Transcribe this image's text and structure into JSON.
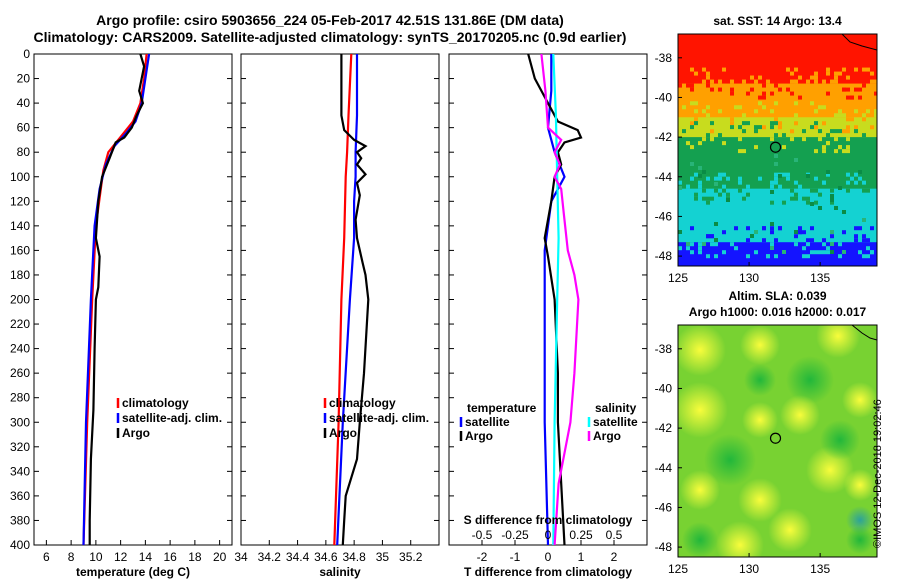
{
  "title": {
    "line1": "Argo profile: csiro 5903656_224 05-Feb-2017 42.51S 131.86E (DM data)",
    "line2": "Climatology: CARS2009. Satellite-adjusted climatology: synTS_20170205.nc (0.9d earlier)"
  },
  "stamp": "©IMOS 12-Dec-2018 19:02:46",
  "colors": {
    "clim": "#ff0000",
    "sat": "#0000ff",
    "argo": "#000000",
    "sdiff_argo": "#ff00ff",
    "sdiff_sat": "#00ffff"
  },
  "chart_data": [
    {
      "id": "temperature",
      "type": "line",
      "xlabel": "temperature (deg C)",
      "ylim": [
        400,
        0
      ],
      "xlim": [
        5,
        21
      ],
      "xticks": [
        6,
        8,
        10,
        12,
        14,
        16,
        18,
        20
      ],
      "yticks": [
        0,
        20,
        40,
        60,
        80,
        100,
        120,
        140,
        160,
        180,
        200,
        220,
        240,
        260,
        280,
        300,
        320,
        340,
        360,
        380,
        400
      ],
      "legend": [
        "climatology",
        "satellite-adj. clim.",
        "Argo"
      ],
      "series": [
        {
          "name": "climatology",
          "color": "#ff0000",
          "depth": [
            0,
            20,
            40,
            55,
            70,
            80,
            95,
            110,
            140,
            200,
            300,
            400
          ],
          "values": [
            14.1,
            13.9,
            13.6,
            13.0,
            11.8,
            11.0,
            10.6,
            10.4,
            10.0,
            9.7,
            9.3,
            9.0
          ]
        },
        {
          "name": "satellite-adj. clim.",
          "color": "#0000ff",
          "depth": [
            0,
            20,
            40,
            55,
            65,
            75,
            90,
            110,
            140,
            200,
            300,
            400
          ],
          "values": [
            14.3,
            14.0,
            13.7,
            13.2,
            12.4,
            11.5,
            10.8,
            10.3,
            9.9,
            9.6,
            9.2,
            9.0
          ]
        },
        {
          "name": "Argo",
          "color": "#000000",
          "depth": [
            0,
            10,
            30,
            40,
            50,
            60,
            68,
            72,
            85,
            100,
            120,
            150,
            165,
            190,
            200,
            240,
            290,
            330,
            380,
            400
          ],
          "values": [
            13.6,
            13.9,
            13.5,
            13.8,
            13.3,
            12.9,
            12.3,
            11.6,
            11.1,
            10.5,
            10.2,
            10.0,
            10.3,
            10.2,
            10.0,
            9.9,
            9.8,
            9.6,
            9.5,
            9.5
          ]
        }
      ]
    },
    {
      "id": "salinity",
      "type": "line",
      "xlabel": "salinity",
      "ylim": [
        400,
        0
      ],
      "xlim": [
        34.0,
        35.4
      ],
      "xticks": [
        34,
        34.2,
        34.4,
        34.6,
        34.8,
        35,
        35.2
      ],
      "legend": [
        "climatology",
        "satellite-adj. clim.",
        "Argo"
      ],
      "series": [
        {
          "name": "climatology",
          "color": "#ff0000",
          "depth": [
            0,
            50,
            80,
            100,
            150,
            200,
            300,
            400
          ],
          "values": [
            34.78,
            34.76,
            34.75,
            34.74,
            34.73,
            34.71,
            34.69,
            34.66
          ]
        },
        {
          "name": "satellite-adj. clim.",
          "color": "#0000ff",
          "depth": [
            0,
            50,
            80,
            100,
            120,
            150,
            200,
            300,
            400
          ],
          "values": [
            34.82,
            34.82,
            34.81,
            34.81,
            34.8,
            34.8,
            34.77,
            34.72,
            34.68
          ]
        },
        {
          "name": "Argo",
          "color": "#000000",
          "depth": [
            0,
            50,
            62,
            70,
            75,
            80,
            85,
            90,
            98,
            105,
            115,
            135,
            150,
            160,
            170,
            180,
            200,
            260,
            300,
            330,
            360,
            380,
            400
          ],
          "values": [
            34.71,
            34.71,
            34.73,
            34.8,
            34.88,
            34.82,
            34.85,
            34.82,
            34.88,
            34.82,
            34.84,
            34.81,
            34.82,
            34.84,
            34.86,
            34.88,
            34.9,
            34.87,
            34.84,
            34.82,
            34.74,
            34.73,
            34.72
          ]
        }
      ]
    },
    {
      "id": "differences",
      "type": "line",
      "xlabel": "T difference from climatology",
      "xlabel_top": "S difference from climatology",
      "ylim": [
        400,
        0
      ],
      "xlim": [
        -3,
        3
      ],
      "xticks": [
        -2,
        -1,
        0,
        1,
        2
      ],
      "sticks_labels": [
        "-0.5",
        "-0.25",
        "0",
        "0.25",
        "0.5"
      ],
      "sticks_T": [
        -2,
        -1,
        0,
        1,
        2
      ],
      "legend_left_title": "temperature",
      "legend_right_title": "salinity",
      "legend_left": [
        "satellite",
        "Argo"
      ],
      "legend_right": [
        "satellite",
        "Argo"
      ],
      "series": [
        {
          "name": "T satellite",
          "color": "#0000ff",
          "depth": [
            0,
            30,
            60,
            80,
            100,
            120,
            160,
            200,
            300,
            400
          ],
          "values": [
            0.1,
            0.1,
            0.0,
            0.2,
            0.5,
            0.1,
            -0.1,
            -0.1,
            -0.1,
            0.0
          ]
        },
        {
          "name": "T Argo",
          "color": "#000000",
          "depth": [
            0,
            20,
            40,
            55,
            62,
            68,
            72,
            80,
            90,
            100,
            120,
            150,
            165,
            200,
            260,
            300,
            350,
            400
          ],
          "values": [
            -0.6,
            -0.4,
            0.0,
            0.3,
            0.9,
            1.0,
            0.5,
            0.3,
            0.4,
            0.2,
            0.1,
            -0.1,
            0.0,
            0.2,
            0.3,
            0.3,
            0.4,
            0.5
          ]
        },
        {
          "name": "S satellite",
          "color": "#00ffff",
          "depth": [
            0,
            50,
            100,
            150,
            200,
            300,
            400
          ],
          "values": [
            0.04,
            0.06,
            0.07,
            0.08,
            0.07,
            0.05,
            0.04
          ]
        },
        {
          "name": "S Argo",
          "color": "#ff00ff",
          "depth": [
            0,
            30,
            60,
            70,
            80,
            90,
            100,
            110,
            130,
            160,
            180,
            200,
            260,
            300,
            350,
            400
          ],
          "values": [
            -0.05,
            -0.02,
            0.0,
            0.1,
            0.05,
            0.09,
            0.05,
            0.1,
            0.12,
            0.15,
            0.2,
            0.23,
            0.2,
            0.17,
            0.08,
            0.05
          ]
        }
      ]
    },
    {
      "id": "sst-map",
      "type": "heatmap",
      "title": "sat. SST: 14 Argo: 13.4",
      "xticks": [
        125,
        130,
        135
      ],
      "yticks": [
        -38,
        -40,
        -42,
        -44,
        -46,
        -48
      ],
      "xlim": [
        125,
        139
      ],
      "ylim": [
        -48.5,
        -36.8
      ],
      "marker": {
        "lon": 131.86,
        "lat": -42.51
      }
    },
    {
      "id": "sla-map",
      "type": "heatmap",
      "title": "Altim. SLA: 0.039",
      "subtitle": "Argo h1000: 0.016 h2000: 0.017",
      "xticks": [
        125,
        130,
        135
      ],
      "yticks": [
        -38,
        -40,
        -42,
        -44,
        -46,
        -48
      ],
      "xlim": [
        125,
        139
      ],
      "ylim": [
        -48.5,
        -36.8
      ],
      "marker": {
        "lon": 131.86,
        "lat": -42.51
      }
    }
  ]
}
